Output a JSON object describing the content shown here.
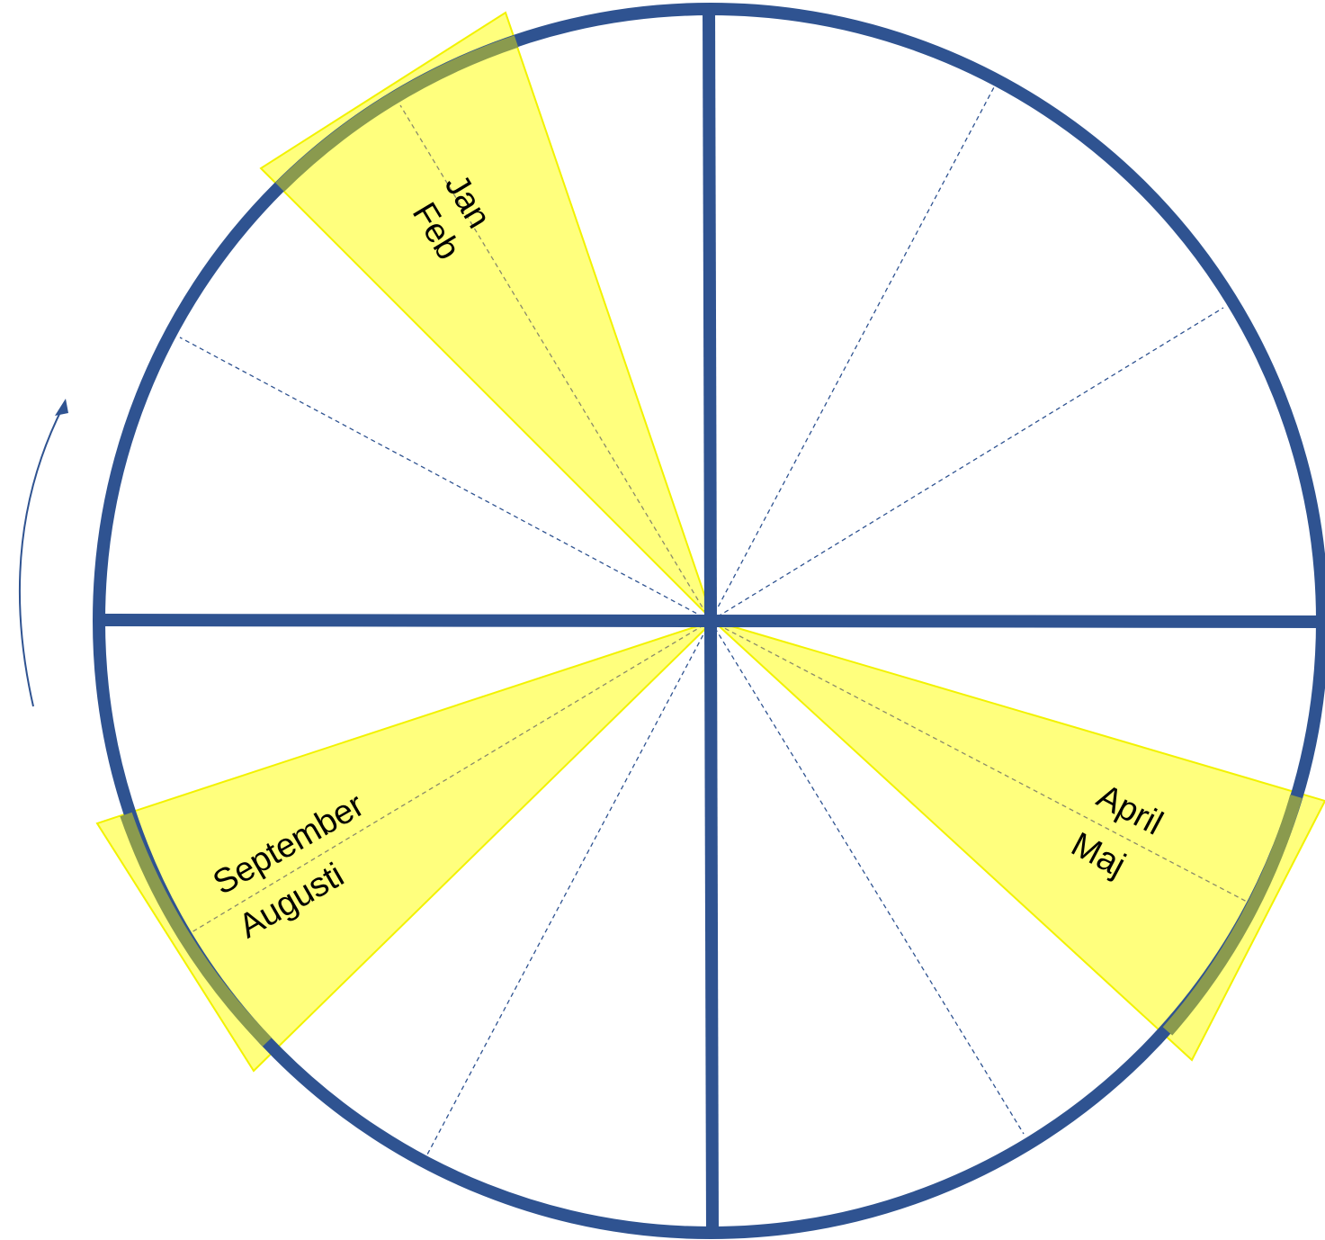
{
  "wheel": {
    "colors": {
      "ring": "#2f5391",
      "divider_dashed": "#2f5391",
      "highlight_fill": "#ffff66",
      "highlight_stroke": "#f2f200",
      "ring_under_highlight": "#8a9a4e",
      "text": "#000000"
    },
    "direction_arrow_icon": "counter-clockwise-arrow-icon",
    "labels": {
      "jan": "Jan",
      "feb": "Feb",
      "april": "April",
      "maj": "Maj",
      "september": "September",
      "augusti": "Augusti"
    }
  }
}
